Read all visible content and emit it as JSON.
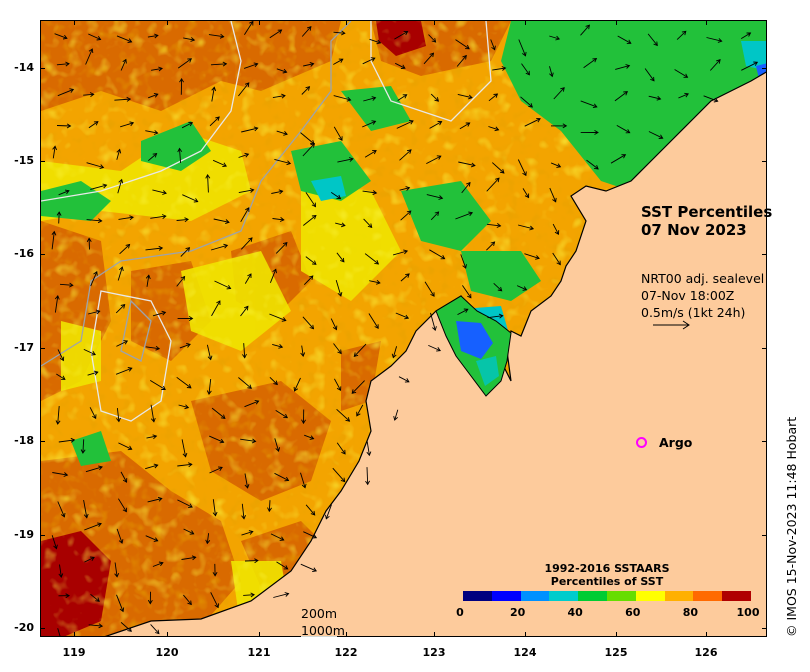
{
  "title": {
    "line1": "SST Percentiles",
    "line2": "07 Nov 2023"
  },
  "vectors": {
    "line1": "NRT00 adj. sealevel",
    "line2": "07-Nov 18:00Z",
    "line3": "0.5m/s (1kt 24h)"
  },
  "argo": {
    "label": "Argo",
    "marker_color": "#ff00ff"
  },
  "contours": {
    "label1": "200m",
    "label2": "1000m"
  },
  "colorbar": {
    "title1": "1992-2016 SSTAARS",
    "title2": "Percentiles of SST",
    "ticks": [
      "0",
      "20",
      "40",
      "60",
      "80",
      "100"
    ],
    "colors": [
      "#00007f",
      "#0000ff",
      "#0091ff",
      "#00cccc",
      "#00cc33",
      "#66dd00",
      "#ffff00",
      "#ffb000",
      "#ff6a00",
      "#b00000"
    ]
  },
  "axes": {
    "latitudes": [
      "-14",
      "-15",
      "-16",
      "-17",
      "-18",
      "-19",
      "-20"
    ],
    "longitudes": [
      "119",
      "120",
      "121",
      "122",
      "123",
      "124",
      "125",
      "126"
    ]
  },
  "credit": "© IMOS 15-Nov-2023 11:48 Hobart",
  "colors": {
    "land": "#fdcb9c",
    "coastline": "#000000",
    "contour_200": "#9ea3aa",
    "contour_1000": "#e8e8e8"
  },
  "map_extent": {
    "lon_min": 118.62,
    "lon_max": 126.75,
    "lat_min": -20.1,
    "lat_max": -13.55
  }
}
